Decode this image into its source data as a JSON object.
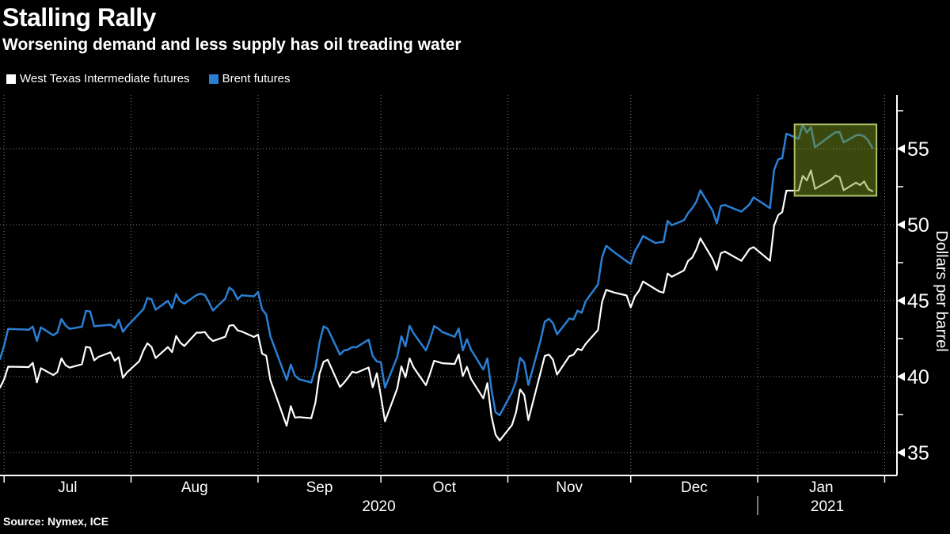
{
  "header": {
    "title": "Stalling Rally",
    "subtitle": "Worsening demand and less supply has oil treading water"
  },
  "legend": [
    {
      "label": "West Texas Intermediate futures",
      "color": "#ffffff"
    },
    {
      "label": "Brent futures",
      "color": "#2a7fd4"
    }
  ],
  "source": "Source: Nymex, ICE",
  "chart_data": {
    "type": "line",
    "title": "Stalling Rally",
    "subtitle": "Worsening demand and less supply has oil treading water",
    "xlabel": "",
    "ylabel": "Dollars per barrel",
    "ylim": [
      33.49,
      58.54
    ],
    "yticks": [
      35,
      40,
      45,
      50,
      55
    ],
    "yticks_minor": [
      37.5,
      42.5,
      47.5,
      52.5,
      57.5
    ],
    "grid": "dotted",
    "legend_position": "top-left",
    "background": "#000000",
    "axis_color": "#ffffff",
    "grid_color": "rgba(255,255,255,0.5)",
    "x_domain": [
      "2020-06-30",
      "2021-02-04"
    ],
    "x_gridlines": [
      "2020-07-01",
      "2020-08-01",
      "2020-09-01",
      "2020-10-01",
      "2020-11-01",
      "2020-12-01",
      "2021-01-01",
      "2021-02-01"
    ],
    "month_labels": [
      {
        "label": "Jul",
        "start": "2020-07-01",
        "end": "2020-08-01"
      },
      {
        "label": "Aug",
        "start": "2020-08-01",
        "end": "2020-09-01"
      },
      {
        "label": "Sep",
        "start": "2020-09-01",
        "end": "2020-10-01"
      },
      {
        "label": "Oct",
        "start": "2020-10-01",
        "end": "2020-11-01"
      },
      {
        "label": "Nov",
        "start": "2020-11-01",
        "end": "2020-12-01"
      },
      {
        "label": "Dec",
        "start": "2020-12-01",
        "end": "2021-01-01"
      },
      {
        "label": "Jan",
        "start": "2021-01-01",
        "end": "2021-02-01"
      }
    ],
    "year_labels": [
      {
        "label": "2020",
        "start": "2020-06-30",
        "end": "2021-01-01"
      },
      {
        "label": "2021",
        "start": "2021-01-01",
        "end": "2021-02-04"
      }
    ],
    "year_separator": "2021-01-01",
    "highlight_box": {
      "x_start": "2021-01-10",
      "x_end": "2021-01-30",
      "y_top": 56.6,
      "y_bottom": 51.9,
      "fill": "#7b991f",
      "fill_opacity": 0.48,
      "border": "#aec167"
    },
    "dates": [
      "2020-06-30",
      "2020-07-01",
      "2020-07-02",
      "2020-07-06",
      "2020-07-07",
      "2020-07-08",
      "2020-07-09",
      "2020-07-10",
      "2020-07-13",
      "2020-07-14",
      "2020-07-15",
      "2020-07-16",
      "2020-07-17",
      "2020-07-20",
      "2020-07-21",
      "2020-07-22",
      "2020-07-23",
      "2020-07-24",
      "2020-07-27",
      "2020-07-28",
      "2020-07-29",
      "2020-07-30",
      "2020-07-31",
      "2020-08-03",
      "2020-08-04",
      "2020-08-05",
      "2020-08-06",
      "2020-08-07",
      "2020-08-10",
      "2020-08-11",
      "2020-08-12",
      "2020-08-13",
      "2020-08-14",
      "2020-08-17",
      "2020-08-18",
      "2020-08-19",
      "2020-08-20",
      "2020-08-21",
      "2020-08-24",
      "2020-08-25",
      "2020-08-26",
      "2020-08-27",
      "2020-08-28",
      "2020-08-31",
      "2020-09-01",
      "2020-09-02",
      "2020-09-03",
      "2020-09-04",
      "2020-09-08",
      "2020-09-09",
      "2020-09-10",
      "2020-09-11",
      "2020-09-14",
      "2020-09-15",
      "2020-09-16",
      "2020-09-17",
      "2020-09-18",
      "2020-09-21",
      "2020-09-22",
      "2020-09-23",
      "2020-09-24",
      "2020-09-25",
      "2020-09-28",
      "2020-09-29",
      "2020-09-30",
      "2020-10-01",
      "2020-10-02",
      "2020-10-05",
      "2020-10-06",
      "2020-10-07",
      "2020-10-08",
      "2020-10-09",
      "2020-10-12",
      "2020-10-13",
      "2020-10-14",
      "2020-10-15",
      "2020-10-16",
      "2020-10-19",
      "2020-10-20",
      "2020-10-21",
      "2020-10-22",
      "2020-10-23",
      "2020-10-26",
      "2020-10-27",
      "2020-10-28",
      "2020-10-29",
      "2020-10-30",
      "2020-11-02",
      "2020-11-03",
      "2020-11-04",
      "2020-11-05",
      "2020-11-06",
      "2020-11-09",
      "2020-11-10",
      "2020-11-11",
      "2020-11-12",
      "2020-11-13",
      "2020-11-16",
      "2020-11-17",
      "2020-11-18",
      "2020-11-19",
      "2020-11-20",
      "2020-11-23",
      "2020-11-24",
      "2020-11-25",
      "2020-11-27",
      "2020-11-30",
      "2020-12-01",
      "2020-12-02",
      "2020-12-03",
      "2020-12-04",
      "2020-12-07",
      "2020-12-08",
      "2020-12-09",
      "2020-12-10",
      "2020-12-11",
      "2020-12-14",
      "2020-12-15",
      "2020-12-16",
      "2020-12-17",
      "2020-12-18",
      "2020-12-21",
      "2020-12-22",
      "2020-12-23",
      "2020-12-24",
      "2020-12-28",
      "2020-12-29",
      "2020-12-30",
      "2020-12-31",
      "2021-01-04",
      "2021-01-05",
      "2021-01-06",
      "2021-01-07",
      "2021-01-08",
      "2021-01-11",
      "2021-01-12",
      "2021-01-13",
      "2021-01-14",
      "2021-01-15",
      "2021-01-19",
      "2021-01-20",
      "2021-01-21",
      "2021-01-22",
      "2021-01-25",
      "2021-01-26",
      "2021-01-27",
      "2021-01-28",
      "2021-01-29"
    ],
    "series": [
      {
        "name": "West Texas Intermediate futures",
        "color": "#ffffff",
        "width": 2.2,
        "values": [
          39.27,
          39.82,
          40.65,
          40.63,
          40.62,
          40.9,
          39.62,
          40.55,
          40.1,
          40.29,
          41.2,
          40.75,
          40.59,
          40.81,
          41.96,
          41.9,
          41.07,
          41.29,
          41.6,
          41.04,
          41.27,
          39.92,
          40.27,
          41.01,
          41.7,
          42.19,
          41.95,
          41.22,
          41.94,
          41.61,
          42.67,
          42.24,
          42.01,
          42.89,
          42.89,
          42.93,
          42.58,
          42.34,
          42.62,
          43.35,
          43.39,
          43.04,
          42.97,
          42.61,
          42.76,
          41.51,
          41.37,
          39.77,
          36.76,
          38.05,
          37.3,
          37.33,
          37.26,
          38.28,
          40.16,
          40.97,
          41.11,
          39.31,
          39.6,
          39.93,
          40.31,
          40.25,
          40.6,
          39.29,
          40.22,
          38.72,
          37.05,
          39.22,
          40.67,
          39.95,
          41.19,
          40.6,
          39.43,
          40.2,
          41.04,
          40.96,
          40.88,
          40.83,
          41.46,
          40.03,
          40.64,
          39.85,
          38.56,
          39.57,
          37.39,
          36.17,
          35.79,
          36.81,
          37.66,
          39.15,
          38.79,
          37.14,
          40.29,
          41.36,
          41.45,
          41.12,
          40.13,
          41.34,
          41.43,
          41.82,
          41.74,
          42.15,
          43.06,
          44.91,
          45.71,
          45.53,
          45.34,
          44.55,
          45.28,
          45.64,
          46.26,
          45.76,
          45.6,
          45.52,
          46.78,
          46.57,
          46.99,
          47.62,
          47.82,
          48.36,
          49.1,
          47.74,
          47.02,
          48.12,
          48.23,
          47.62,
          48.0,
          48.4,
          48.52,
          47.62,
          49.93,
          50.63,
          50.83,
          52.24,
          52.25,
          53.21,
          52.91,
          53.57,
          52.36,
          52.98,
          53.24,
          53.13,
          52.27,
          52.77,
          52.61,
          52.85,
          52.34,
          52.2
        ]
      },
      {
        "name": "Brent futures",
        "color": "#2a7fd4",
        "width": 2.5,
        "values": [
          41.15,
          42.03,
          43.14,
          43.1,
          43.08,
          43.29,
          42.35,
          43.24,
          42.72,
          42.9,
          43.79,
          43.37,
          43.14,
          43.28,
          44.32,
          44.29,
          43.31,
          43.34,
          43.41,
          43.22,
          43.75,
          42.94,
          43.3,
          44.15,
          44.43,
          45.17,
          45.09,
          44.4,
          44.99,
          44.5,
          45.43,
          44.96,
          44.8,
          45.37,
          45.46,
          45.37,
          44.9,
          44.35,
          45.13,
          45.86,
          45.64,
          45.09,
          45.35,
          45.28,
          45.58,
          44.43,
          44.07,
          42.66,
          39.78,
          40.79,
          40.06,
          39.83,
          39.61,
          40.53,
          42.22,
          43.3,
          43.15,
          41.44,
          41.72,
          41.77,
          41.94,
          41.92,
          42.43,
          41.35,
          41.0,
          40.93,
          39.27,
          41.29,
          42.65,
          41.99,
          43.34,
          42.85,
          41.72,
          42.45,
          43.32,
          43.16,
          42.93,
          42.62,
          43.16,
          41.73,
          42.46,
          41.77,
          40.46,
          41.2,
          39.12,
          37.65,
          37.46,
          38.97,
          39.71,
          41.23,
          40.93,
          39.45,
          42.4,
          43.61,
          43.8,
          43.53,
          42.78,
          43.82,
          43.75,
          44.34,
          44.2,
          44.96,
          46.06,
          47.86,
          48.61,
          48.18,
          47.59,
          47.42,
          48.25,
          48.71,
          49.25,
          48.79,
          48.84,
          48.86,
          50.25,
          49.97,
          50.29,
          50.76,
          51.08,
          51.5,
          52.26,
          50.91,
          50.08,
          51.24,
          51.29,
          50.86,
          51.09,
          51.34,
          51.8,
          51.09,
          53.6,
          54.3,
          54.38,
          55.99,
          55.66,
          56.58,
          56.06,
          56.42,
          55.1,
          55.9,
          56.08,
          56.1,
          55.41,
          55.88,
          55.91,
          55.81,
          55.53,
          55.04
        ]
      }
    ]
  }
}
